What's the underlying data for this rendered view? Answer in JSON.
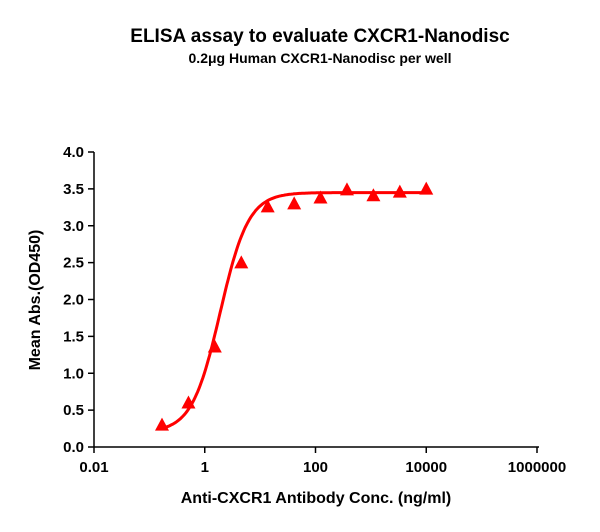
{
  "chart_data": {
    "type": "scatter",
    "title": "ELISA assay to evaluate CXCR1-Nanodisc",
    "subtitle": "0.2μg Human CXCR1-Nanodisc per well",
    "xlabel": "Anti-CXCR1 Antibody Conc. (ng/ml)",
    "ylabel": "Mean Abs.(OD450)",
    "xscale": "log",
    "xlim": [
      0.01,
      1000000
    ],
    "ylim": [
      0,
      4.0
    ],
    "xticks": [
      "0.01",
      "1",
      "100",
      "10000",
      "1000000"
    ],
    "yticks": [
      "0.0",
      "0.5",
      "1.0",
      "1.5",
      "2.0",
      "2.5",
      "3.0",
      "3.5",
      "4.0"
    ],
    "grid": false,
    "marker": "triangle",
    "fit_line": "sigmoidal curve",
    "color": "#ff0000",
    "x": [
      0.169,
      0.508,
      1.52,
      4.57,
      13.7,
      41.2,
      123,
      370,
      1111,
      3333,
      10000
    ],
    "y": [
      0.29,
      0.59,
      1.35,
      2.49,
      3.25,
      3.29,
      3.37,
      3.48,
      3.4,
      3.45,
      3.49
    ]
  }
}
